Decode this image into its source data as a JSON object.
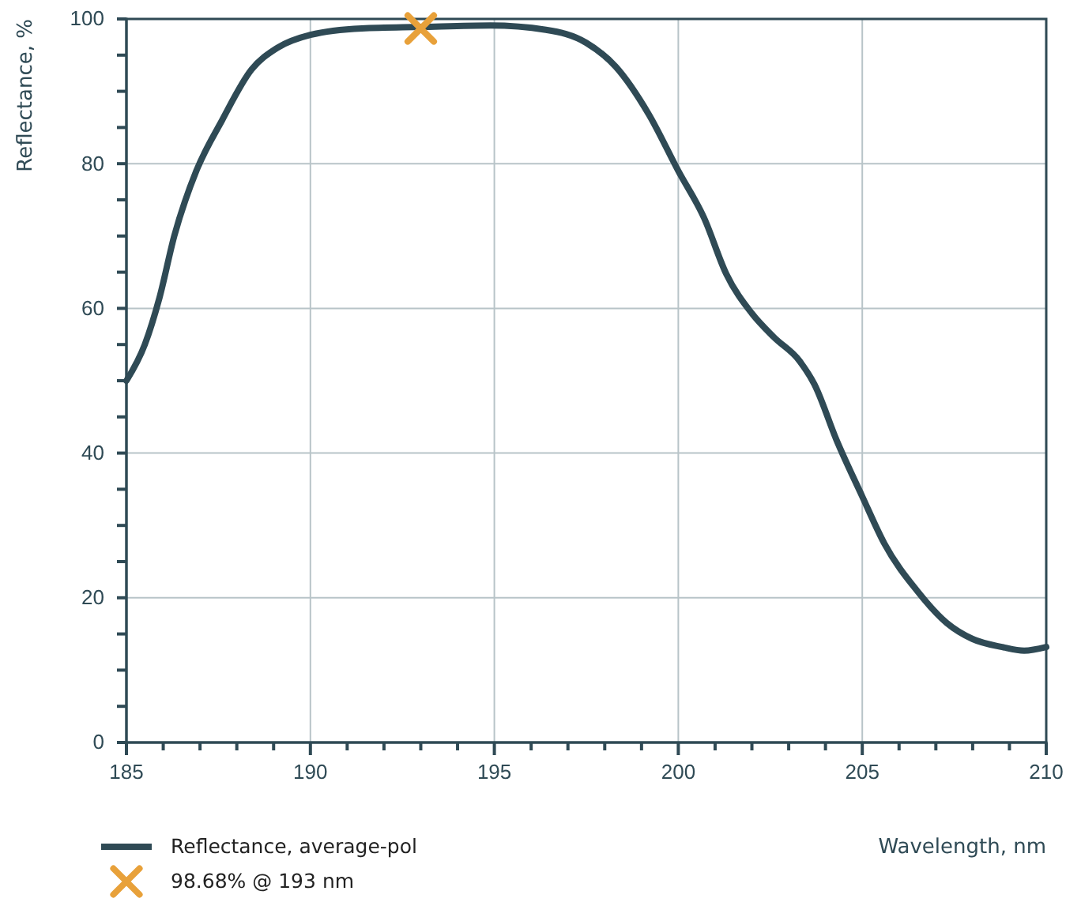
{
  "chart_data": {
    "type": "line",
    "xlabel": "Wavelength, nm",
    "ylabel": "Reflectance, %",
    "xlim": [
      185,
      210
    ],
    "ylim": [
      0,
      100
    ],
    "xticks": [
      185,
      {
        "value": 186,
        "label": null
      },
      {
        "value": 187,
        "label": null
      },
      {
        "value": 188,
        "label": null
      },
      {
        "value": 189,
        "label": null
      },
      190,
      {
        "value": 191,
        "label": null
      },
      {
        "value": 192,
        "label": null
      },
      {
        "value": 193,
        "label": null
      },
      {
        "value": 194,
        "label": null
      },
      195,
      {
        "value": 196,
        "label": null
      },
      {
        "value": 197,
        "label": null
      },
      {
        "value": 198,
        "label": null
      },
      {
        "value": 199,
        "label": null
      },
      200,
      {
        "value": 201,
        "label": null
      },
      {
        "value": 202,
        "label": null
      },
      {
        "value": 203,
        "label": null
      },
      {
        "value": 204,
        "label": null
      },
      205,
      {
        "value": 206,
        "label": null
      },
      {
        "value": 207,
        "label": null
      },
      {
        "value": 208,
        "label": null
      },
      {
        "value": 209,
        "label": null
      },
      210
    ],
    "yticks": [
      0,
      {
        "value": 5,
        "label": null
      },
      {
        "value": 10,
        "label": null
      },
      {
        "value": 15,
        "label": null
      },
      20,
      {
        "value": 25,
        "label": null
      },
      {
        "value": 30,
        "label": null
      },
      {
        "value": 35,
        "label": null
      },
      40,
      {
        "value": 45,
        "label": null
      },
      {
        "value": 50,
        "label": null
      },
      {
        "value": 55,
        "label": null
      },
      60,
      {
        "value": 65,
        "label": null
      },
      {
        "value": 70,
        "label": null
      },
      {
        "value": 75,
        "label": null
      },
      80,
      {
        "value": 85,
        "label": null
      },
      {
        "value": 90,
        "label": null
      },
      {
        "value": 95,
        "label": null
      },
      100
    ],
    "grid": true,
    "legend": "bottom left",
    "series": [
      {
        "name": "Reflectance, average-pol",
        "color": "#2f4a55",
        "line_style": "solid",
        "marker": "none",
        "x": [
          185,
          185.5,
          185.9,
          186.3,
          186.9,
          187.6,
          188.4,
          189.1,
          190,
          191.4,
          193,
          194.9,
          196.4,
          197.5,
          198.3,
          199.2,
          200,
          200.7,
          201.3,
          202,
          202.6,
          203.3,
          203.7,
          204.3,
          205,
          205.6,
          206.5,
          207.3,
          208,
          208.8,
          209.4,
          210
        ],
        "values": [
          50,
          55,
          61.5,
          70,
          79,
          86,
          93,
          96,
          97.8,
          98.7,
          98.9,
          99.1,
          98.5,
          96.7,
          93.4,
          86.8,
          79,
          72.5,
          64.8,
          59.3,
          56,
          52.7,
          49.5,
          41.8,
          34,
          27.5,
          20.9,
          16.5,
          14.3,
          13.2,
          12.7,
          13.2
        ]
      },
      {
        "name": "98.68% @ 193 nm",
        "type": "scatter",
        "color": "#e8a13a",
        "marker": "cross",
        "x": [
          193
        ],
        "values": [
          98.68
        ]
      }
    ]
  }
}
